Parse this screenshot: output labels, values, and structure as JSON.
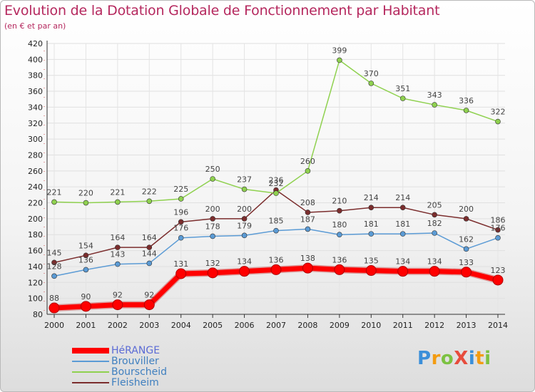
{
  "title": "Evolution de la Dotation Globale de Fonctionnement par Habitant",
  "subtitle": "(en € et par an)",
  "brand": {
    "text": "ProXiti",
    "colors": [
      "#3b8fd9",
      "#f39c12",
      "#7cc242",
      "#e74c3c"
    ]
  },
  "chart_data": {
    "type": "line",
    "title": "Evolution de la Dotation Globale de Fonctionnement par Habitant",
    "ylabel": "(en € et par an)",
    "xlabel": "",
    "x": [
      2000,
      2001,
      2002,
      2003,
      2004,
      2005,
      2006,
      2007,
      2008,
      2009,
      2010,
      2011,
      2012,
      2013,
      2014
    ],
    "ylim": [
      80,
      420
    ],
    "yticks": [
      80,
      100,
      120,
      140,
      160,
      180,
      200,
      220,
      240,
      260,
      280,
      300,
      320,
      340,
      360,
      380,
      400,
      420
    ],
    "series": [
      {
        "name": "HéRANGE",
        "color": "#ff0000",
        "values": [
          88,
          90,
          92,
          92,
          131,
          132,
          134,
          136,
          138,
          136,
          135,
          134,
          134,
          133,
          123
        ]
      },
      {
        "name": "Brouviller",
        "color": "#5b9bd5",
        "values": [
          128,
          136,
          143,
          144,
          176,
          178,
          179,
          185,
          187,
          180,
          181,
          181,
          182,
          162,
          176
        ]
      },
      {
        "name": "Bourscheid",
        "color": "#8fd14f",
        "values": [
          221,
          220,
          221,
          222,
          225,
          250,
          237,
          232,
          260,
          399,
          370,
          351,
          343,
          336,
          322
        ]
      },
      {
        "name": "Fleisheim",
        "color": "#7b2d2d",
        "values": [
          145,
          154,
          164,
          164,
          196,
          200,
          200,
          236,
          208,
          210,
          214,
          214,
          205,
          200,
          186
        ]
      }
    ],
    "legend_position": "bottom-left"
  }
}
